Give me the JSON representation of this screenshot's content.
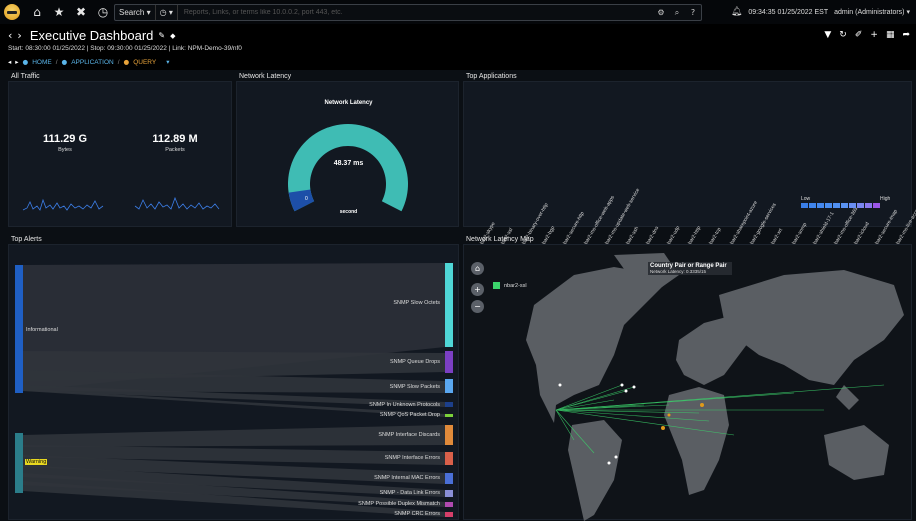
{
  "topbar": {
    "search_label": "Search",
    "search_placeholder": "Reports, Links, or terms like 10.0.0.2, port 443, etc.",
    "clock": "09:34:35 01/25/2022 EST",
    "user": "admin (Administrators)"
  },
  "header": {
    "title": "Executive Dashboard",
    "subinfo": "Start: 08:30:00 01/25/2022 | Stop: 09:30:00 01/25/2022 | Link: NPM-Demo-39/nf0",
    "crumbs": [
      "HOME",
      "APPLICATION",
      "QUERY"
    ]
  },
  "all_traffic": {
    "title": "All Traffic",
    "bytes_value": "111.29 G",
    "bytes_label": "Bytes",
    "packets_value": "112.89 M",
    "packets_label": "Packets"
  },
  "latency": {
    "title": "Network Latency",
    "chart_title": "Network Latency",
    "value": "48.37 ms",
    "min": "0",
    "unit": "second",
    "fraction": 0.08
  },
  "top_apps": {
    "title": "Top Applications",
    "legend_low": "Low",
    "legend_high": "High",
    "apps": [
      "nbar2-skype",
      "nbar2-ssl",
      "nbar2-binary-over-http",
      "nbar2-bgp",
      "nbar2-secure-http",
      "nbar2-ms-office-web-apps",
      "nbar2-ms-update-web-service",
      "nbar2-ssh",
      "nbar2-dns",
      "nbar2-udp",
      "nbar2-http",
      "nbar2-tcp",
      "nbar2-sharepoint-azure",
      "nbar2-google-services",
      "nbar2-xrt",
      "nbar2-snmp",
      "nbar2-shield-17-1",
      "nbar2-ms-office-365",
      "nbar2-icloud",
      "nbar2-secure-imap",
      "nbar2-ms-live-accounts"
    ]
  },
  "alerts": {
    "title": "Top Alerts",
    "sources": [
      {
        "name": "Informational",
        "color": "#1f5fc4"
      },
      {
        "name": "Warning",
        "color": "#2b7d8a"
      }
    ],
    "targets": [
      {
        "name": "SNMP Slow Octets",
        "color": "#4fd6d6"
      },
      {
        "name": "SNMP Queue Drops",
        "color": "#7b3fc4"
      },
      {
        "name": "SNMP Slow Packets",
        "color": "#5aa7f0"
      },
      {
        "name": "SNMP In Unknown Protocols",
        "color": "#1c3f8a"
      },
      {
        "name": "SNMP QoS Packet Drop",
        "color": "#7bd13a"
      },
      {
        "name": "SNMP Interface Discards",
        "color": "#e08a3a"
      },
      {
        "name": "SNMP Interface Errors",
        "color": "#d9604a"
      },
      {
        "name": "SNMP Internal MAC Errors",
        "color": "#4a6fd6"
      },
      {
        "name": "SNMP - Data Link Errors",
        "color": "#8a8fd6"
      },
      {
        "name": "SNMP Possible Duplex Mismatch",
        "color": "#b04ab0"
      },
      {
        "name": "SNMP CRC Errors",
        "color": "#d63f6a"
      }
    ]
  },
  "map": {
    "title": "Network Latency Map",
    "tooltip_title": "Country Pair or Range Pair",
    "tooltip_body": "Network Latency: 0.3335/15",
    "legend_item": "nbar2-ssl"
  }
}
